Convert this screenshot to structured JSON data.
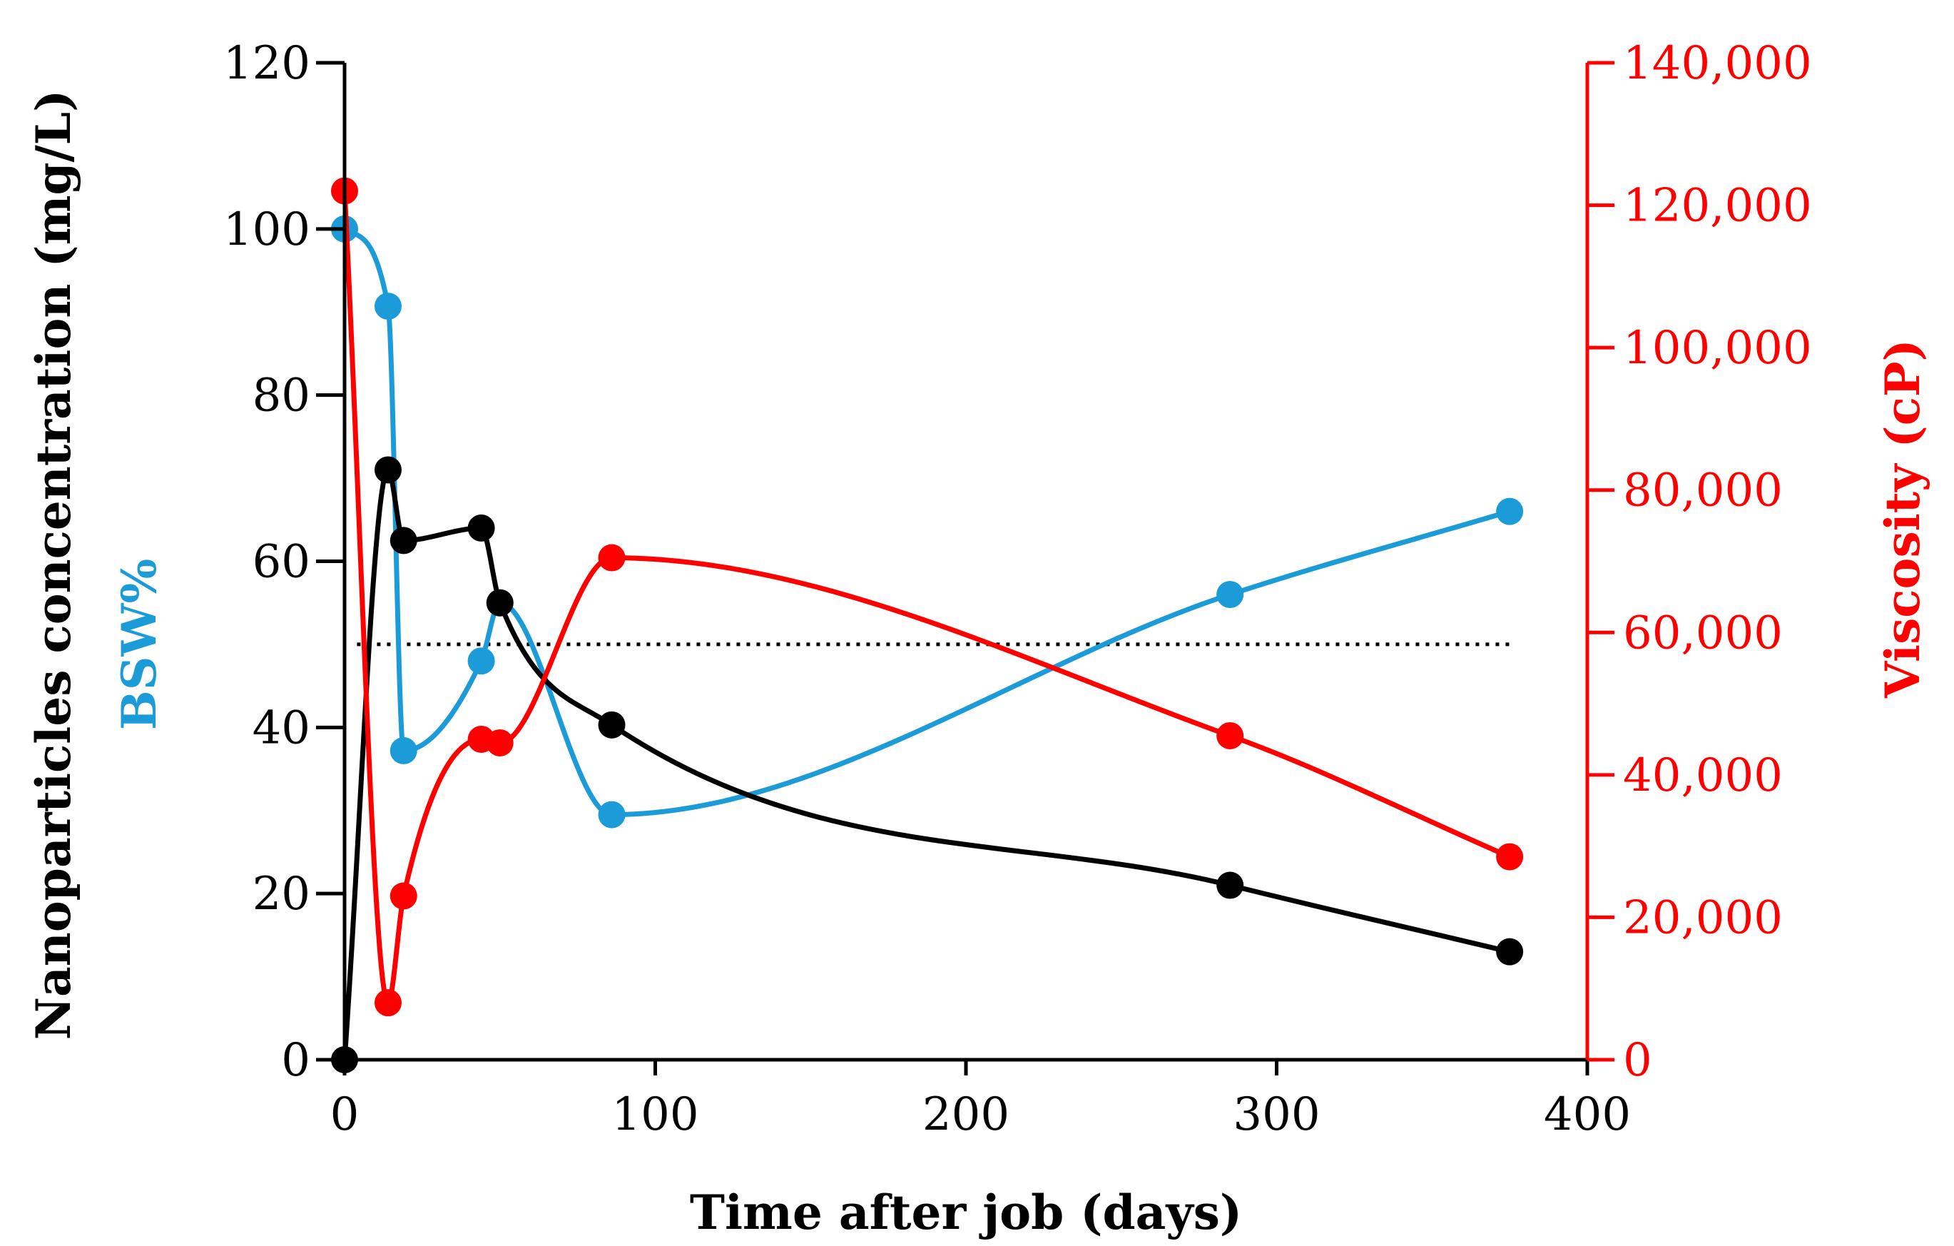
{
  "chart_data": {
    "type": "line",
    "title": "",
    "xlabel": "Time after job (days)",
    "ylabel_left_1": "Nanoparticles concentration (mg/L)",
    "ylabel_left_2": "BSW%",
    "ylabel_right": "Viscosity (cP)",
    "xlim": [
      0,
      400
    ],
    "ylim_left": [
      0,
      120
    ],
    "ylim_right": [
      0,
      140000
    ],
    "x_ticks": [
      "0",
      "100",
      "200",
      "300",
      "400"
    ],
    "y_left_ticks": [
      "0",
      "20",
      "40",
      "60",
      "80",
      "100",
      "120"
    ],
    "y_right_ticks": [
      "0",
      "20,000",
      "40,000",
      "60,000",
      "80,000",
      "100,000",
      "120,000",
      "140,000"
    ],
    "reference_line": {
      "y": 50,
      "x_range": [
        4,
        375
      ],
      "style": "dotted",
      "color": "#000000"
    },
    "series": [
      {
        "name": "Nanoparticles concentration (mg/L)",
        "axis": "left",
        "color": "#000000",
        "x": [
          0,
          14,
          19,
          44,
          50,
          86,
          285,
          375
        ],
        "values": [
          0,
          71,
          62.5,
          64,
          55,
          40.3,
          21,
          13
        ]
      },
      {
        "name": "BSW%",
        "axis": "left",
        "color": "#1b9bd7",
        "x": [
          0,
          14,
          19,
          44,
          50,
          86,
          285,
          375
        ],
        "values": [
          100,
          90.7,
          37.2,
          48,
          55,
          29.5,
          56,
          66
        ]
      },
      {
        "name": "Viscosity (cP)",
        "axis": "right",
        "color": "#ff0000",
        "x": [
          0,
          14,
          19,
          44,
          50,
          86,
          285,
          375
        ],
        "values": [
          122000,
          8000,
          23000,
          45000,
          44500,
          70500,
          45500,
          28500
        ]
      }
    ]
  }
}
